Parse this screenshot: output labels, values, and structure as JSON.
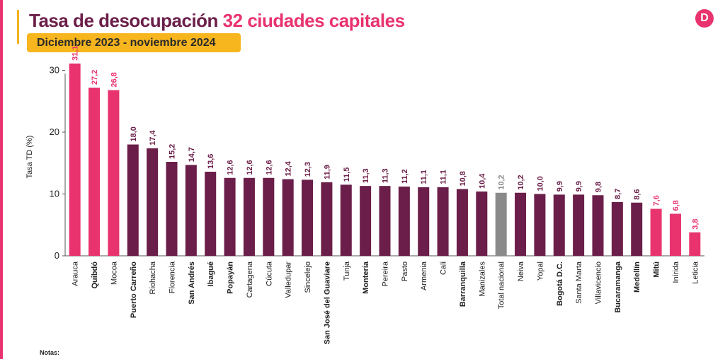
{
  "header": {
    "title_main": "Tasa de desocupación",
    "title_highlight": "32 ciudades capitales",
    "subtitle": "Diciembre 2023 - noviembre 2024",
    "logo_letter": "D"
  },
  "notes_label": "Notas:",
  "colors": {
    "highlight": "#e8336e",
    "city": "#6b1e49",
    "national": "#8a8a8a",
    "accent": "#f7b51e"
  },
  "chart_data": {
    "type": "bar",
    "ylabel": "Tasa TD (%)",
    "xlabel": "",
    "ylim": [
      0,
      32
    ],
    "yticks": [
      0,
      10,
      20,
      30
    ],
    "grid": false,
    "categories": [
      "Arauca",
      "Quibdó",
      "Mocoa",
      "Puerto Carreño",
      "Riohacha",
      "Florencia",
      "San Andrés",
      "Ibagué",
      "Popayán",
      "Cartagena",
      "Cúcuta",
      "Valledupar",
      "Sincelejo",
      "San José del Guaviare",
      "Tunja",
      "Montería",
      "Pereira",
      "Pasto",
      "Armenia",
      "Cali",
      "Barranquilla",
      "Manizales",
      "Total nacional",
      "Neiva",
      "Yopal",
      "Bogotá D.C.",
      "Santa Marta",
      "Villavicencio",
      "Bucaramanga",
      "Medellín",
      "Mitú",
      "Inírida",
      "Leticia"
    ],
    "values": [
      31.1,
      27.2,
      26.8,
      18.0,
      17.4,
      15.2,
      14.7,
      13.6,
      12.6,
      12.6,
      12.6,
      12.4,
      12.3,
      11.9,
      11.5,
      11.3,
      11.3,
      11.2,
      11.1,
      11.1,
      10.8,
      10.4,
      10.2,
      10.2,
      10.0,
      9.9,
      9.9,
      9.8,
      8.7,
      8.6,
      7.6,
      6.8,
      3.8
    ],
    "labels": [
      "31,1",
      "27,2",
      "26,8",
      "18,0",
      "17,4",
      "15,2",
      "14,7",
      "13,6",
      "12,6",
      "12,6",
      "12,6",
      "12,4",
      "12,3",
      "11,9",
      "11,5",
      "11,3",
      "11,3",
      "11,2",
      "11,1",
      "11,1",
      "10,8",
      "10,4",
      "10,2",
      "10,2",
      "10,0",
      "9,9",
      "9,9",
      "9,8",
      "8,7",
      "8,6",
      "7,6",
      "6,8",
      "3,8"
    ],
    "groups": [
      "highlight",
      "highlight",
      "highlight",
      "city",
      "city",
      "city",
      "city",
      "city",
      "city",
      "city",
      "city",
      "city",
      "city",
      "city",
      "city",
      "city",
      "city",
      "city",
      "city",
      "city",
      "city",
      "city",
      "national",
      "city",
      "city",
      "city",
      "city",
      "city",
      "city",
      "city",
      "highlight",
      "highlight",
      "highlight"
    ],
    "bold_labels": [
      false,
      true,
      false,
      true,
      false,
      false,
      true,
      true,
      true,
      false,
      false,
      false,
      false,
      true,
      false,
      true,
      false,
      false,
      false,
      false,
      true,
      false,
      false,
      false,
      false,
      true,
      false,
      false,
      true,
      true,
      true,
      false,
      false
    ]
  }
}
